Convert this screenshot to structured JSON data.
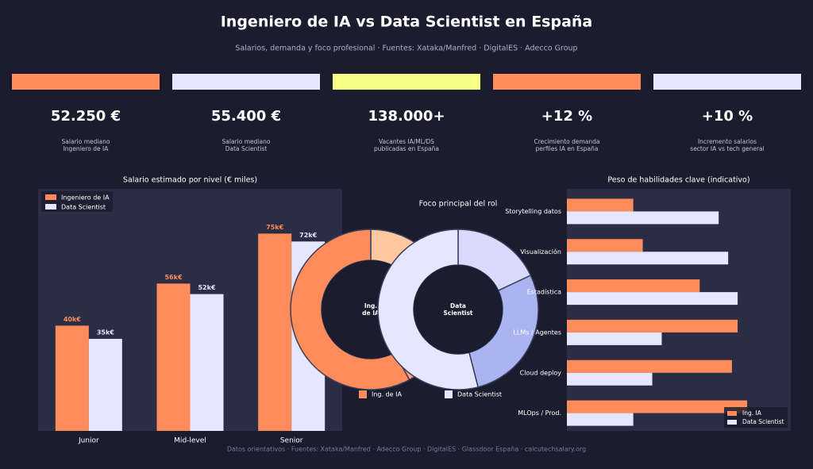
{
  "header": {
    "title": "Ingeniero de IA vs Data Scientist en España",
    "subtitle": "Salarios, demanda y foco profesional · Fuentes: Xataka/Manfred · DigitalES · Adecco Group"
  },
  "kpis": [
    {
      "value": "52.250 €",
      "label": [
        "Salario mediano",
        "Ingeniero de IA"
      ],
      "color": "#ff8c5a"
    },
    {
      "value": "55.400 €",
      "label": [
        "Salario mediano",
        "Data Scientist"
      ],
      "color": "#e6e6ff"
    },
    {
      "value": "138.000+",
      "label": [
        "Vacantes IA/ML/DS",
        "publicadas en España"
      ],
      "color": "#f5ff85"
    },
    {
      "value": "+12 %",
      "label": [
        "Crecimiento demanda",
        "perfiles IA en España"
      ],
      "color": "#ff8c5a"
    },
    {
      "value": "+10 %",
      "label": [
        "Incremento salarios",
        "sector IA vs tech general"
      ],
      "color": "#e6e6ff"
    }
  ],
  "chart_data": [
    {
      "type": "bar",
      "title": "Salario estimado por nivel (€ miles)",
      "categories": [
        "Junior",
        "Mid-level",
        "Senior"
      ],
      "series": [
        {
          "name": "Ingeniero de IA",
          "color": "#ff8c5a",
          "values": [
            40,
            56,
            75
          ],
          "value_labels": [
            "40k€",
            "56k€",
            "75k€"
          ]
        },
        {
          "name": "Data Scientist",
          "color": "#e6e6ff",
          "values": [
            35,
            52,
            72
          ],
          "value_labels": [
            "35k€",
            "52k€",
            "72k€"
          ]
        }
      ],
      "ylim": [
        0,
        92
      ],
      "legend": "upper left"
    },
    {
      "type": "donut",
      "title": "Foco principal del rol",
      "series": [
        {
          "name": "Ing. de IA",
          "center_label": [
            "Ing.",
            "de IA"
          ],
          "color": "#ff8c5a",
          "values": [
            12,
            30,
            58
          ],
          "colors": [
            "#ffc8a0",
            "#ffa07a",
            "#ff8c5a"
          ]
        },
        {
          "name": "Data Scientist",
          "center_label": [
            "Data",
            "Scientist"
          ],
          "color": "#e6e6ff",
          "values": [
            18,
            28,
            54
          ],
          "colors": [
            "#d8dbfb",
            "#aab4f0",
            "#e6e6ff"
          ]
        }
      ]
    },
    {
      "type": "barh",
      "title": "Peso de habilidades clave (indicativo)",
      "categories": [
        "Storytelling datos",
        "Visualización",
        "Estadística",
        "LLMs / Agentes",
        "Cloud deploy",
        "MLOps / Prod."
      ],
      "series": [
        {
          "name": "Ing. IA",
          "color": "#ff8c5a",
          "values": [
            35,
            40,
            70,
            90,
            87,
            95
          ]
        },
        {
          "name": "Data Scientist",
          "color": "#e6e6ff",
          "values": [
            80,
            85,
            90,
            50,
            45,
            35
          ]
        }
      ],
      "xlim": [
        0,
        118
      ],
      "legend": "lower right"
    }
  ],
  "footer": "Datos orientativos · Fuentes: Xataka/Manfred · Adecco Group · DigitalES · Glassdoor España · calcutechsalary.org"
}
